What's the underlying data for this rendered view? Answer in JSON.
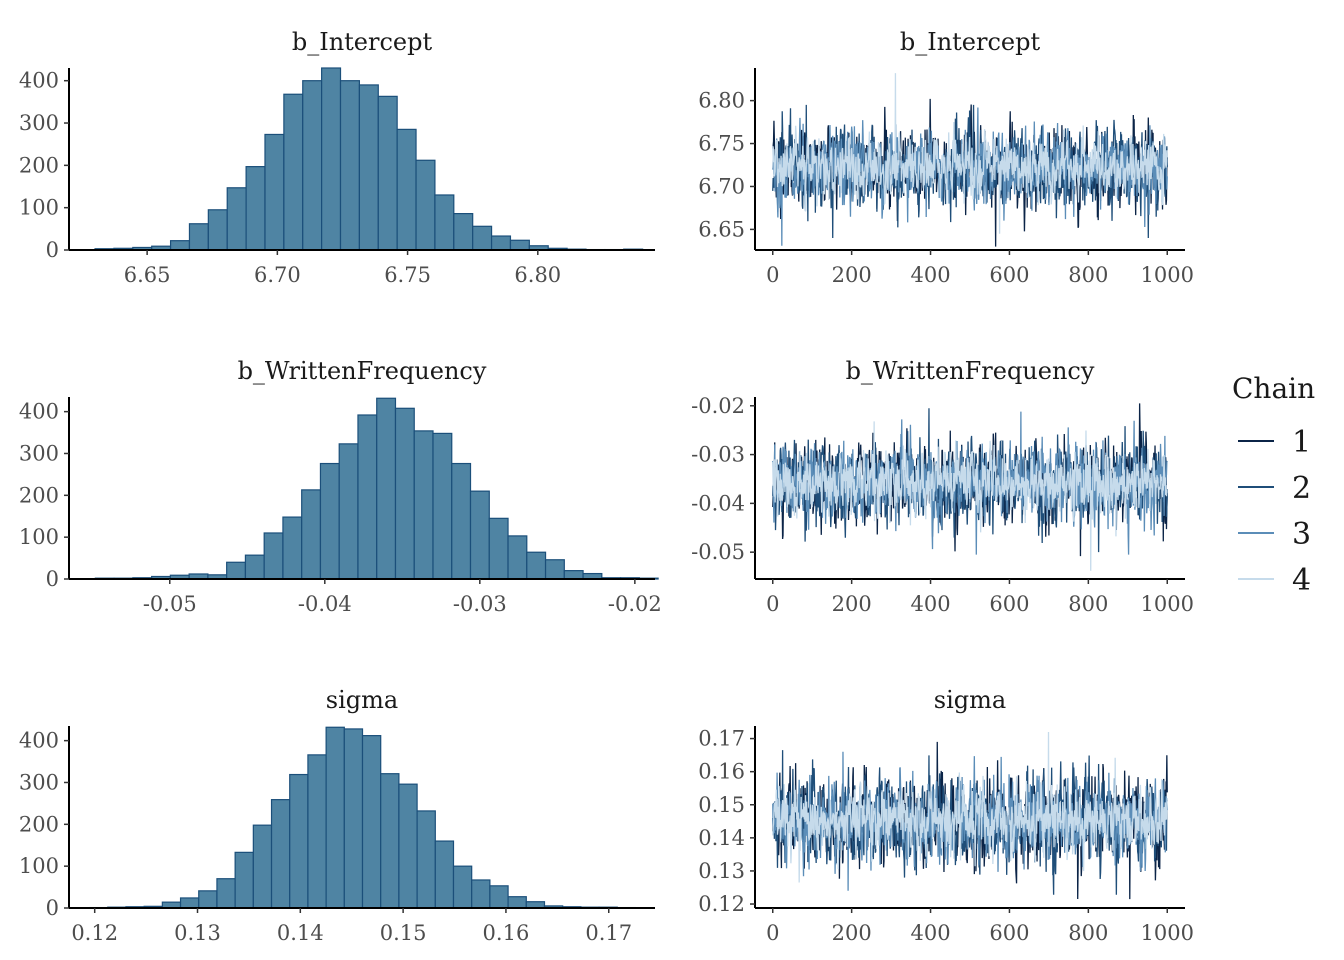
{
  "legend": {
    "title": "Chain",
    "items": [
      {
        "label": "1",
        "color": "#0b2447"
      },
      {
        "label": "2",
        "color": "#1f4e79"
      },
      {
        "label": "3",
        "color": "#5b8db8"
      },
      {
        "label": "4",
        "color": "#c6dbeb"
      }
    ]
  },
  "chart_data": [
    {
      "type": "bar",
      "title": "b_Intercept",
      "xlim": [
        6.62,
        6.845
      ],
      "ylim": [
        0,
        430
      ],
      "xticks": [
        6.65,
        6.7,
        6.75,
        6.8
      ],
      "xtick_labels": [
        "6.65",
        "6.70",
        "6.75",
        "6.80"
      ],
      "yticks": [
        0,
        100,
        200,
        300,
        400
      ],
      "ytick_labels": [
        "0",
        "100",
        "200",
        "300",
        "400"
      ],
      "bin_start": 6.63,
      "bin_width": 0.00725,
      "values": [
        3,
        4,
        6,
        9,
        22,
        62,
        95,
        147,
        197,
        273,
        368,
        400,
        430,
        400,
        390,
        363,
        285,
        212,
        130,
        86,
        56,
        33,
        23,
        10,
        4,
        2,
        1,
        1,
        2
      ]
    },
    {
      "type": "line",
      "title": "b_Intercept",
      "xlim": [
        -45,
        1045
      ],
      "ylim": [
        6.626,
        6.838
      ],
      "xticks": [
        0,
        200,
        400,
        600,
        800,
        1000
      ],
      "xtick_labels": [
        "0",
        "200",
        "400",
        "600",
        "800",
        "1000"
      ],
      "yticks": [
        6.65,
        6.7,
        6.75,
        6.8
      ],
      "ytick_labels": [
        "6.65",
        "6.70",
        "6.75",
        "6.80"
      ],
      "iterations": 1000,
      "series": [
        {
          "name": "1",
          "center": 6.722,
          "spread": 0.022,
          "min": 6.63,
          "max": 6.802
        },
        {
          "name": "2",
          "center": 6.722,
          "spread": 0.022,
          "min": 6.64,
          "max": 6.795
        },
        {
          "name": "3",
          "center": 6.722,
          "spread": 0.021,
          "min": 6.631,
          "max": 6.792
        },
        {
          "name": "4",
          "center": 6.722,
          "spread": 0.016,
          "min": 6.645,
          "max": 6.832
        }
      ]
    },
    {
      "type": "bar",
      "title": "b_WrittenFrequency",
      "xlim": [
        -0.0565,
        -0.0187
      ],
      "ylim": [
        0,
        435
      ],
      "xticks": [
        -0.05,
        -0.04,
        -0.03,
        -0.02
      ],
      "xtick_labels": [
        "-0.05",
        "-0.04",
        "-0.03",
        "-0.02"
      ],
      "yticks": [
        0,
        100,
        200,
        300,
        400
      ],
      "ytick_labels": [
        "0",
        "100",
        "200",
        "300",
        "400"
      ],
      "bin_start": -0.0548,
      "bin_width": 0.00121,
      "values": [
        2,
        2,
        3,
        6,
        9,
        12,
        10,
        40,
        57,
        110,
        148,
        213,
        276,
        323,
        392,
        432,
        408,
        354,
        348,
        276,
        210,
        145,
        103,
        64,
        46,
        20,
        13,
        3,
        3,
        2
      ]
    },
    {
      "type": "line",
      "title": "b_WrittenFrequency",
      "xlim": [
        -45,
        1045
      ],
      "ylim": [
        -0.0555,
        -0.0182
      ],
      "xticks": [
        0,
        200,
        400,
        600,
        800,
        1000
      ],
      "xtick_labels": [
        "0",
        "200",
        "400",
        "600",
        "800",
        "1000"
      ],
      "yticks": [
        -0.05,
        -0.04,
        -0.03,
        -0.02
      ],
      "ytick_labels": [
        "-0.05",
        "-0.04",
        "-0.03",
        "-0.02"
      ],
      "iterations": 1000,
      "series": [
        {
          "name": "1",
          "center": -0.0358,
          "spread": 0.004,
          "min": -0.0508,
          "max": -0.0195
        },
        {
          "name": "2",
          "center": -0.0358,
          "spread": 0.004,
          "min": -0.05,
          "max": -0.0205
        },
        {
          "name": "3",
          "center": -0.0358,
          "spread": 0.0038,
          "min": -0.0505,
          "max": -0.0212
        },
        {
          "name": "4",
          "center": -0.0358,
          "spread": 0.003,
          "min": -0.0538,
          "max": -0.0232
        }
      ]
    },
    {
      "type": "bar",
      "title": "sigma",
      "xlim": [
        0.1175,
        0.1745
      ],
      "ylim": [
        0,
        435
      ],
      "xticks": [
        0.12,
        0.13,
        0.14,
        0.15,
        0.16,
        0.17
      ],
      "xtick_labels": [
        "0.12",
        "0.13",
        "0.14",
        "0.15",
        "0.16",
        "0.17"
      ],
      "yticks": [
        0,
        100,
        200,
        300,
        400
      ],
      "ytick_labels": [
        "0",
        "100",
        "200",
        "300",
        "400"
      ],
      "bin_start": 0.1195,
      "bin_width": 0.00177,
      "values": [
        1,
        2,
        3,
        4,
        14,
        24,
        41,
        70,
        133,
        198,
        259,
        319,
        366,
        432,
        428,
        412,
        321,
        296,
        232,
        160,
        100,
        67,
        53,
        27,
        15,
        5,
        3,
        2,
        2,
        1
      ]
    },
    {
      "type": "line",
      "title": "sigma",
      "xlim": [
        -45,
        1045
      ],
      "ylim": [
        0.1188,
        0.1738
      ],
      "xticks": [
        0,
        200,
        400,
        600,
        800,
        1000
      ],
      "xtick_labels": [
        "0",
        "200",
        "400",
        "600",
        "800",
        "1000"
      ],
      "yticks": [
        0.12,
        0.13,
        0.14,
        0.15,
        0.16,
        0.17
      ],
      "ytick_labels": [
        "0.12",
        "0.13",
        "0.14",
        "0.15",
        "0.16",
        "0.17"
      ],
      "iterations": 1000,
      "series": [
        {
          "name": "1",
          "center": 0.1455,
          "spread": 0.0065,
          "min": 0.1215,
          "max": 0.169
        },
        {
          "name": "2",
          "center": 0.1455,
          "spread": 0.0065,
          "min": 0.1228,
          "max": 0.1665
        },
        {
          "name": "3",
          "center": 0.1455,
          "spread": 0.0062,
          "min": 0.124,
          "max": 0.166
        },
        {
          "name": "4",
          "center": 0.1455,
          "spread": 0.0048,
          "min": 0.1265,
          "max": 0.172
        }
      ]
    }
  ]
}
